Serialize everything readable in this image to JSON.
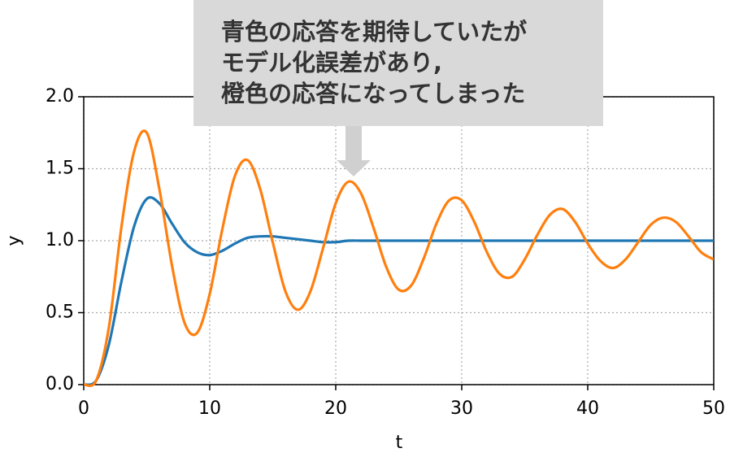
{
  "chart_data": {
    "type": "line",
    "xlabel": "t",
    "ylabel": "y",
    "x": [
      0,
      1,
      2,
      3,
      4,
      5,
      6,
      7,
      8,
      9,
      10,
      11,
      12,
      13,
      14,
      15,
      16,
      17,
      18,
      19,
      20,
      21,
      22,
      23,
      24,
      25,
      26,
      27,
      28,
      29,
      30,
      31,
      32,
      33,
      34,
      35,
      36,
      37,
      38,
      39,
      40,
      41,
      42,
      43,
      44,
      45,
      46,
      47,
      48,
      49,
      50
    ],
    "series": [
      {
        "color": "#1f77b4",
        "values": [
          0,
          0.03,
          0.28,
          0.72,
          1.1,
          1.29,
          1.26,
          1.12,
          0.99,
          0.92,
          0.9,
          0.93,
          0.98,
          1.02,
          1.03,
          1.03,
          1.02,
          1.01,
          1.0,
          0.99,
          0.99,
          1.0,
          1.0,
          1.0,
          1.0,
          1.0,
          1.0,
          1.0,
          1.0,
          1.0,
          1.0,
          1.0,
          1.0,
          1.0,
          1.0,
          1.0,
          1.0,
          1.0,
          1.0,
          1.0,
          1.0,
          1.0,
          1.0,
          1.0,
          1.0,
          1.0,
          1.0,
          1.0,
          1.0,
          1.0,
          1.0
        ]
      },
      {
        "color": "#ff7f0e",
        "values": [
          0,
          0.03,
          0.4,
          1.1,
          1.62,
          1.75,
          1.36,
          0.83,
          0.43,
          0.36,
          0.63,
          1.08,
          1.45,
          1.56,
          1.36,
          0.99,
          0.65,
          0.52,
          0.65,
          0.95,
          1.26,
          1.41,
          1.33,
          1.09,
          0.82,
          0.66,
          0.69,
          0.88,
          1.12,
          1.28,
          1.28,
          1.13,
          0.92,
          0.77,
          0.75,
          0.87,
          1.04,
          1.18,
          1.22,
          1.13,
          0.98,
          0.86,
          0.81,
          0.87,
          0.99,
          1.11,
          1.16,
          1.13,
          1.03,
          0.92,
          0.87
        ]
      }
    ],
    "xlim": [
      0,
      50
    ],
    "xticks": [
      0,
      10,
      20,
      30,
      40,
      50
    ],
    "ylim": [
      0,
      2
    ],
    "yticks": [
      {
        "value": 0,
        "label": "0.0"
      },
      {
        "value": 0.5,
        "label": "0.5"
      },
      {
        "value": 1,
        "label": "1.0"
      },
      {
        "value": 1.5,
        "label": "1.5"
      },
      {
        "value": 2,
        "label": "2.0"
      }
    ],
    "grid": true,
    "annotation": [
      "青色の応答を期待していたが",
      "モデル化誤差があり,",
      "橙色の応答になってしまった"
    ]
  }
}
